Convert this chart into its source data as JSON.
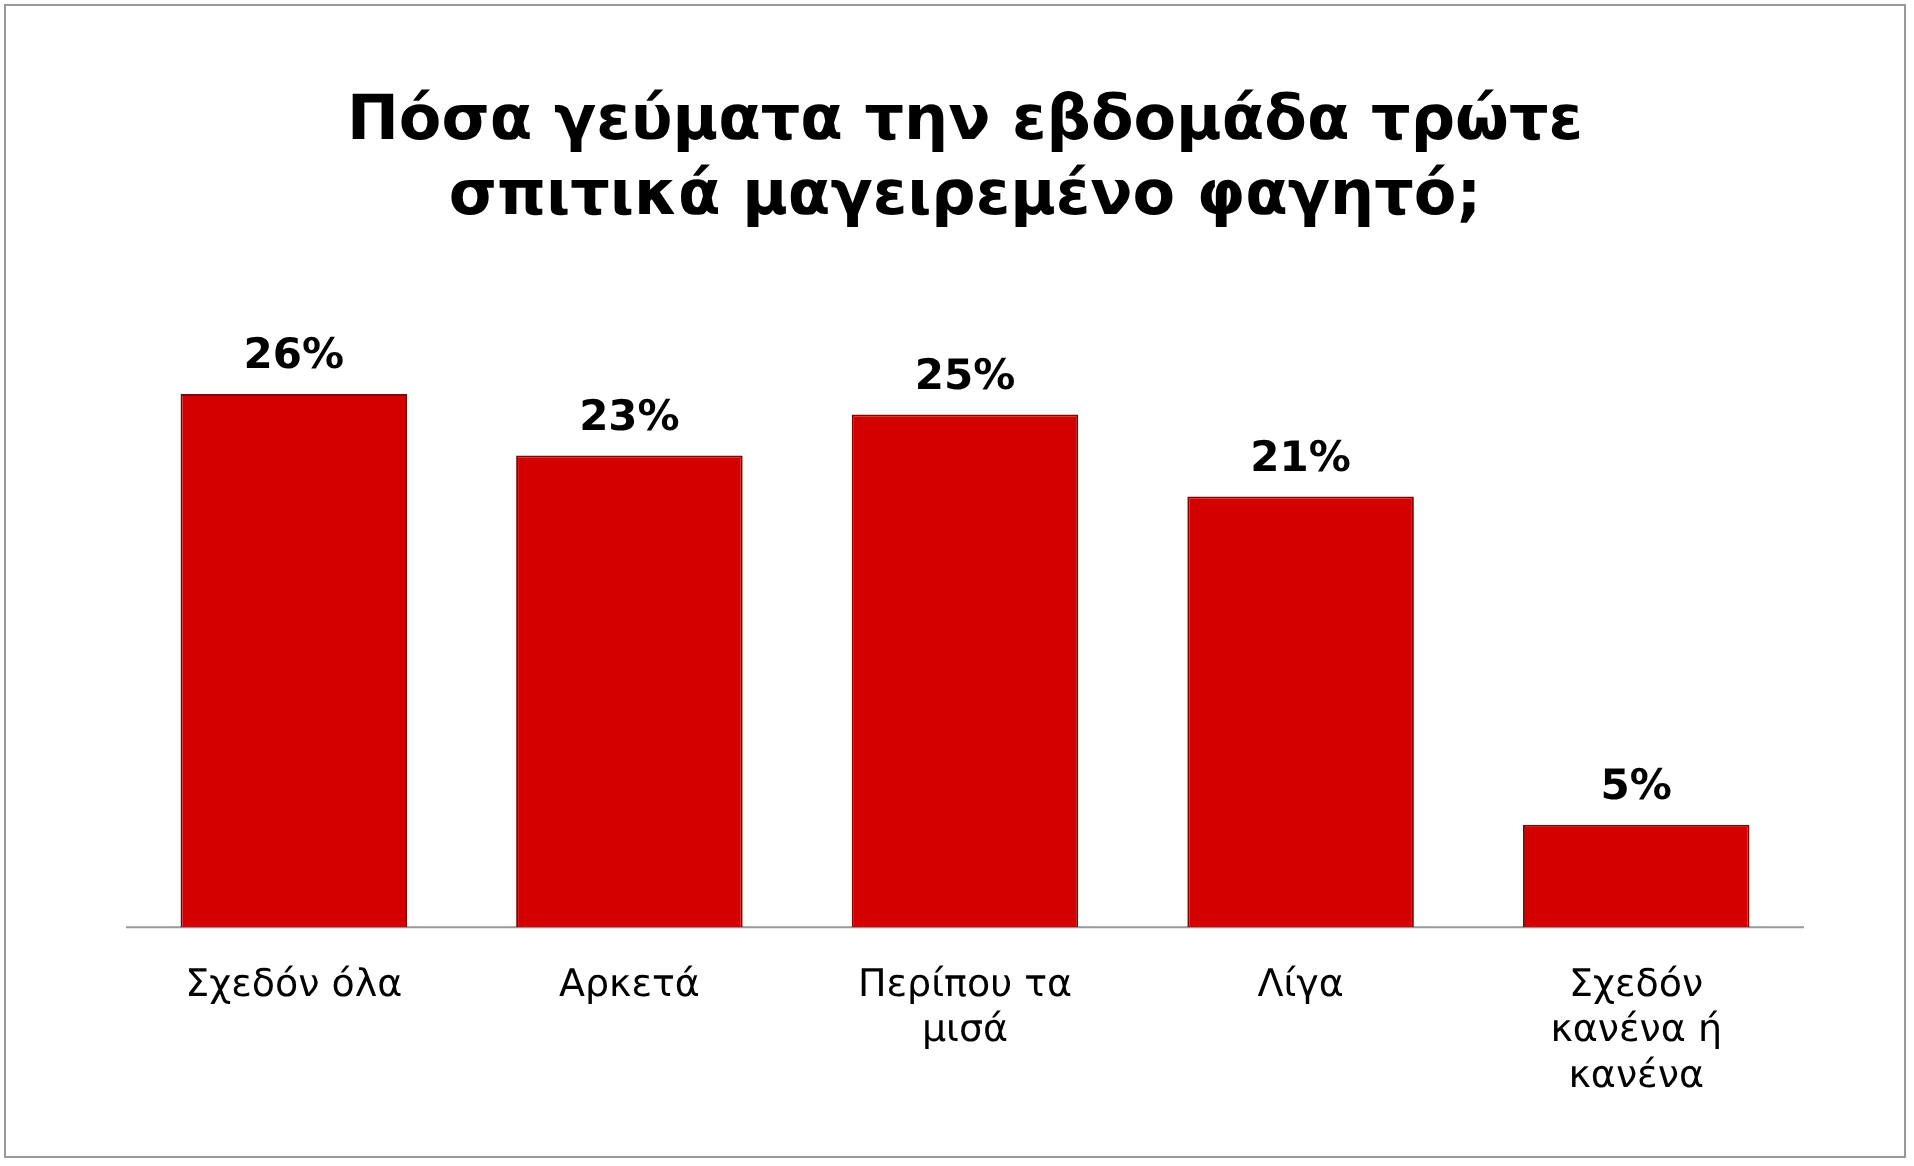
{
  "chart_data": {
    "type": "bar",
    "title": "Πόσα γεύματα την εβδομάδα τρώτε σπιτικά μαγειρεμένο φαγητό;",
    "categories": [
      "Σχεδόν όλα",
      "Αρκετά",
      "Περίπου τα μισά",
      "Λίγα",
      "Σχεδόν κανένα ή κανένα"
    ],
    "values": [
      26,
      23,
      25,
      21,
      5
    ],
    "value_labels": [
      "26%",
      "23%",
      "25%",
      "21%",
      "5%"
    ],
    "color": "#d40000",
    "grid": false,
    "legend": false
  }
}
